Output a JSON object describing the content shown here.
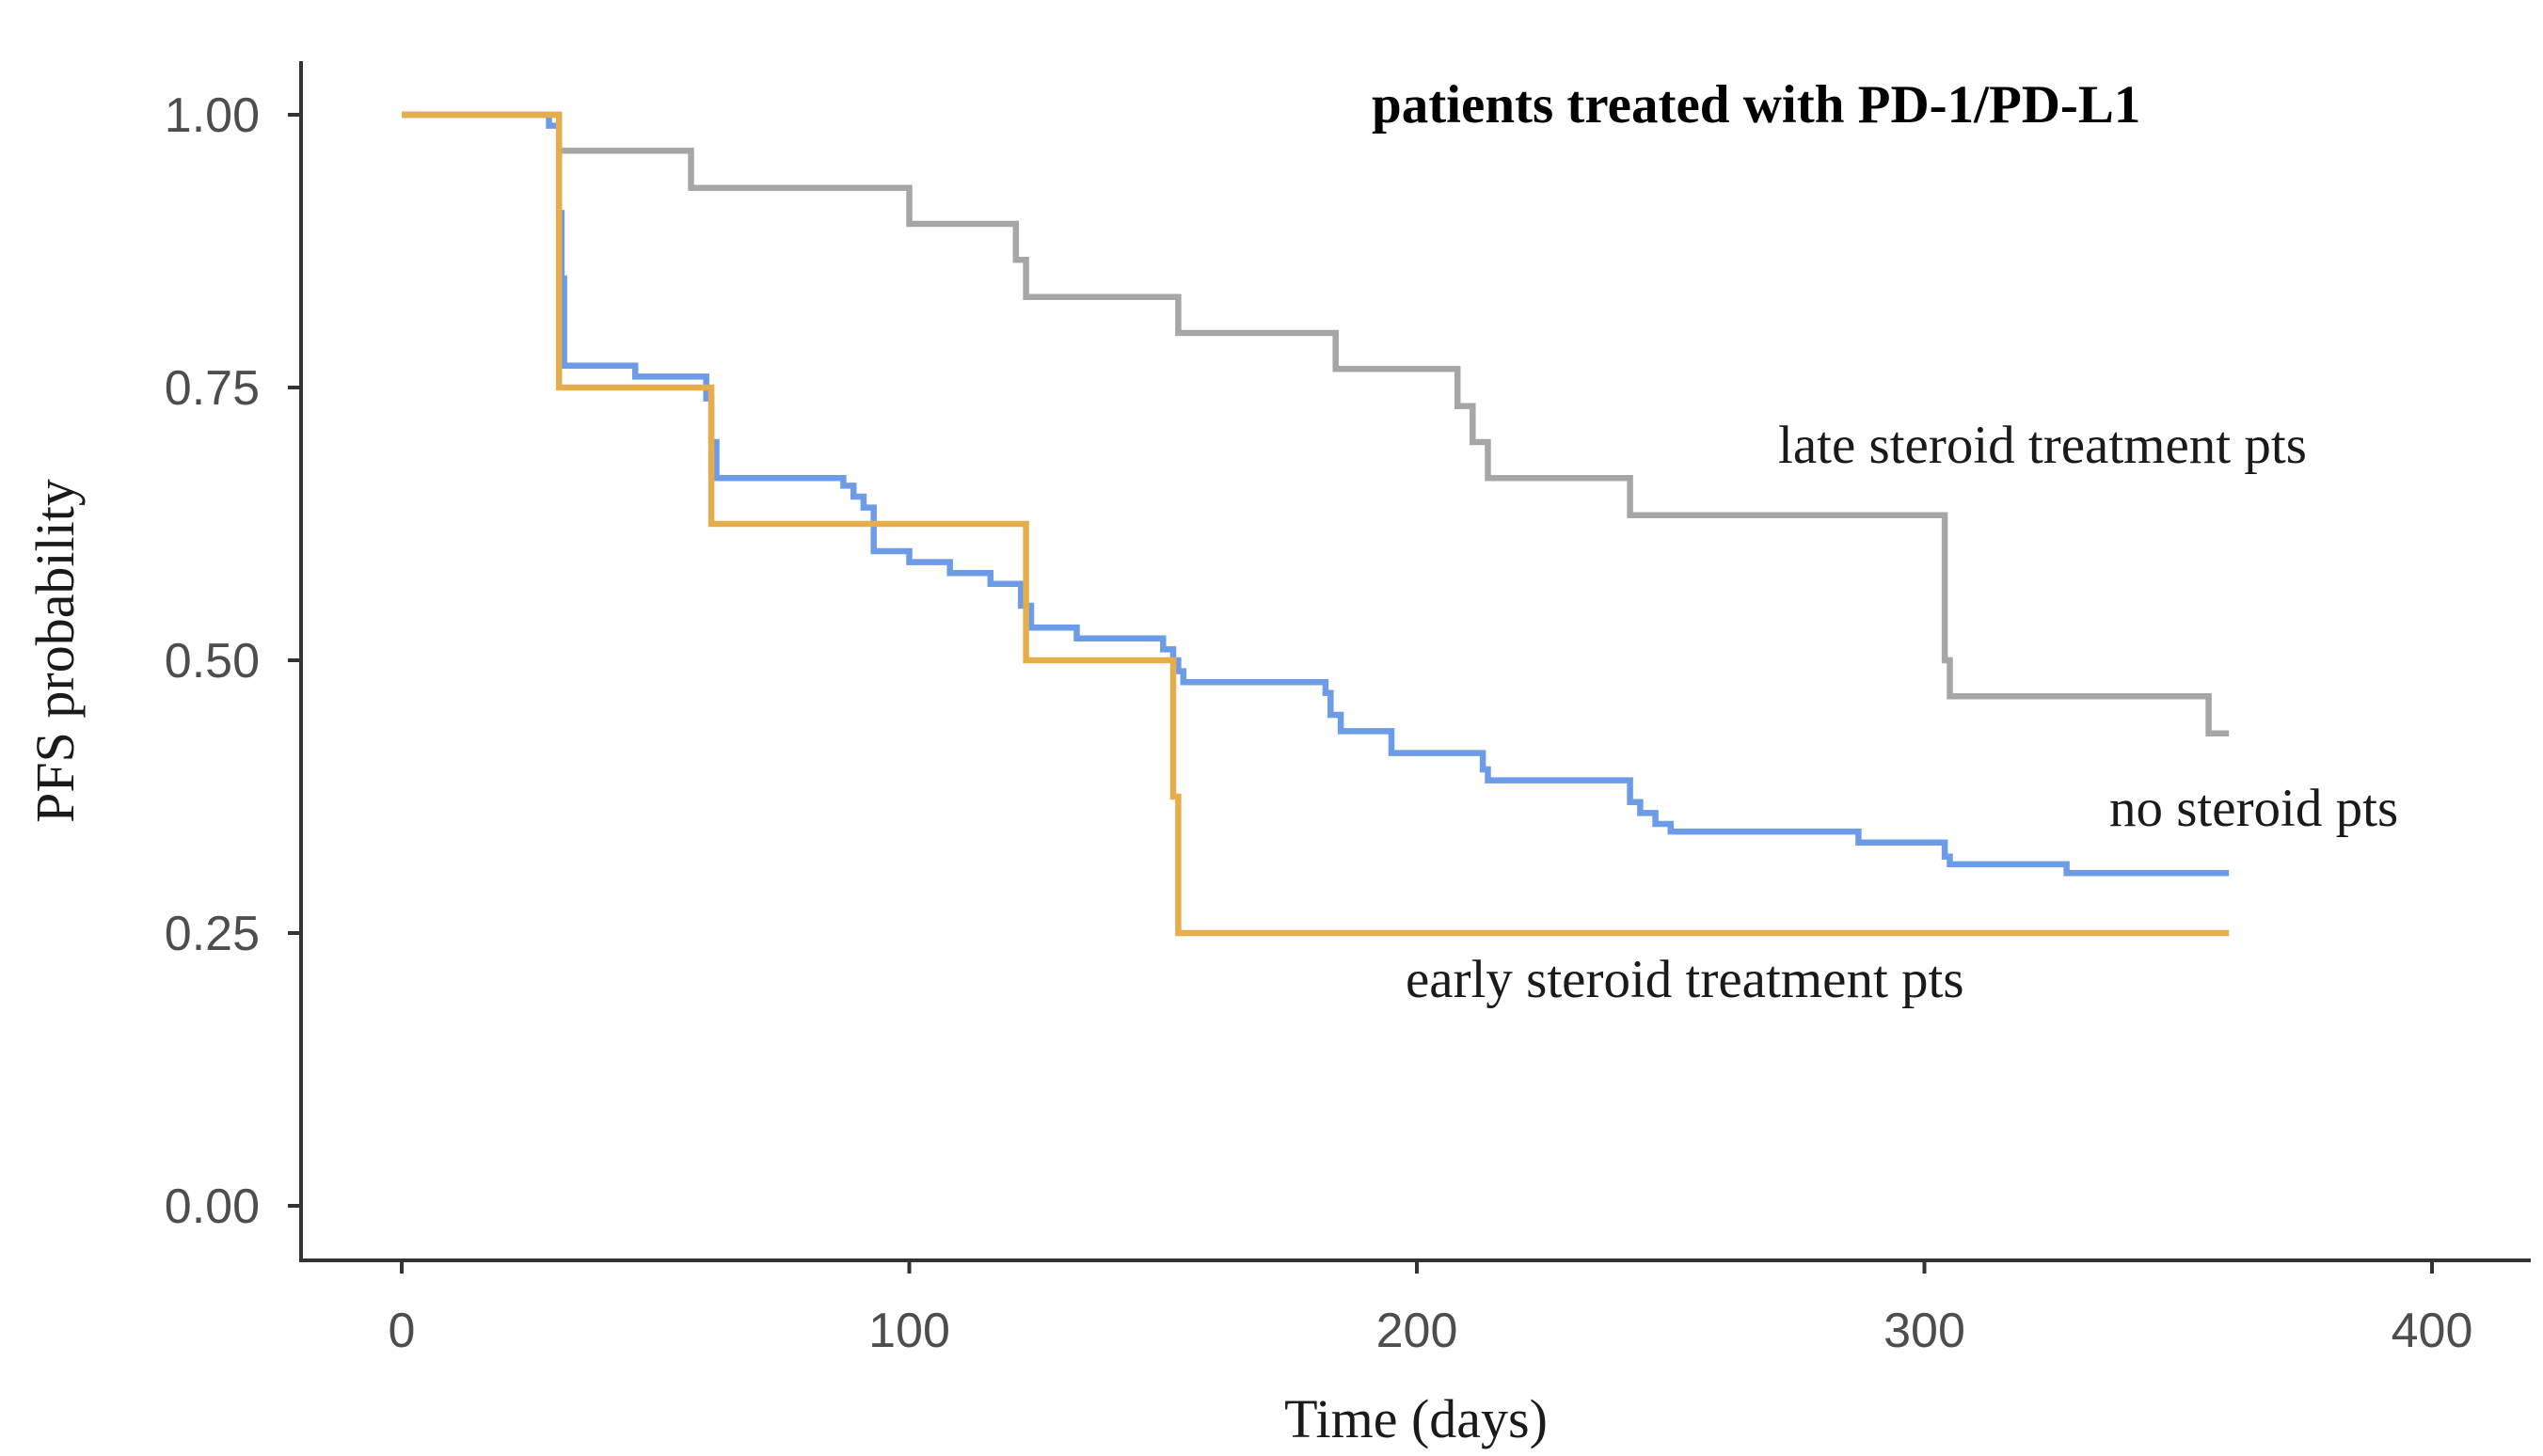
{
  "chart_data": {
    "type": "line",
    "title": "patients treated with PD-1/PD-L1",
    "xlabel": "Time (days)",
    "ylabel": "PFS probability",
    "xlim": [
      -20,
      420
    ],
    "ylim": [
      -0.05,
      1.05
    ],
    "x_ticks": [
      0,
      100,
      200,
      300,
      400
    ],
    "x_tick_labels": [
      "0",
      "100",
      "200",
      "300",
      "400"
    ],
    "y_ticks": [
      0,
      0.25,
      0.5,
      0.75,
      1.0
    ],
    "y_tick_labels": [
      "0.00",
      "0.25",
      "0.50",
      "0.75",
      "1.00"
    ],
    "grid": false,
    "series": [
      {
        "name": "late steroid treatment pts",
        "color": "#a6a6a6",
        "step": true,
        "x": [
          0,
          31,
          57,
          100,
          121,
          123,
          153,
          184,
          208,
          211,
          214,
          242,
          304,
          305,
          356,
          360
        ],
        "y": [
          1.0,
          0.967,
          0.933,
          0.9,
          0.867,
          0.833,
          0.8,
          0.767,
          0.733,
          0.7,
          0.667,
          0.633,
          0.5,
          0.467,
          0.433,
          0.433
        ]
      },
      {
        "name": "no steroid pts",
        "color": "#6c9be8",
        "step": true,
        "x": [
          0,
          29,
          31,
          31.5,
          32,
          46,
          60,
          61,
          62,
          87,
          89,
          91,
          93,
          100,
          108,
          116,
          122,
          124,
          133,
          150,
          152,
          153,
          154,
          182,
          183,
          185,
          195,
          213,
          214,
          242,
          244,
          247,
          250,
          287,
          304,
          305,
          328,
          360
        ],
        "y": [
          1.0,
          0.99,
          0.91,
          0.85,
          0.77,
          0.76,
          0.74,
          0.7,
          0.667,
          0.66,
          0.65,
          0.64,
          0.6,
          0.59,
          0.58,
          0.57,
          0.55,
          0.53,
          0.52,
          0.51,
          0.5,
          0.49,
          0.48,
          0.47,
          0.45,
          0.435,
          0.415,
          0.4,
          0.39,
          0.37,
          0.36,
          0.35,
          0.343,
          0.333,
          0.32,
          0.313,
          0.305,
          0.305
        ]
      },
      {
        "name": "early steroid treatment pts",
        "color": "#e8ad4b",
        "step": true,
        "x": [
          0,
          31,
          61,
          123,
          152,
          153,
          360
        ],
        "y": [
          1.0,
          0.75,
          0.625,
          0.5,
          0.375,
          0.25,
          0.25
        ]
      }
    ]
  }
}
